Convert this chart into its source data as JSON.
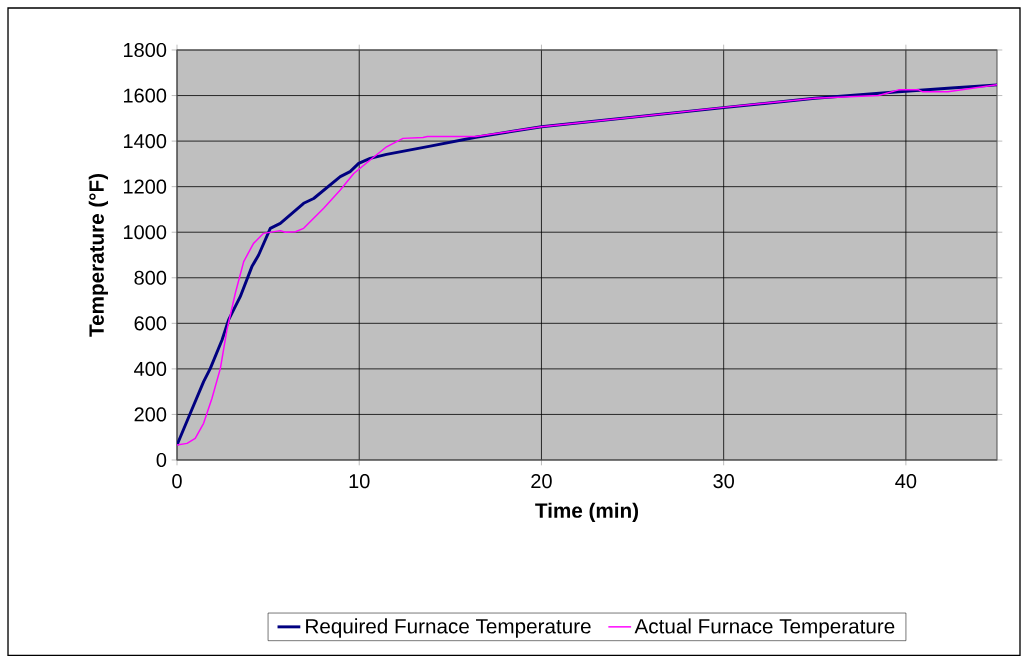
{
  "chart_data": {
    "type": "line",
    "xlabel": "Time (min)",
    "ylabel": "Temperature (°F)",
    "xlim": [
      0,
      45
    ],
    "xticks": [
      0,
      10,
      20,
      30,
      40
    ],
    "ylim": [
      0,
      1800
    ],
    "yticks": [
      0,
      200,
      400,
      600,
      800,
      1000,
      1200,
      1400,
      1600,
      1800
    ],
    "grid": true,
    "legend": "bottom",
    "marker": "none",
    "line_style": "solid",
    "series": [
      {
        "name": "Required Furnace Temperature",
        "color": "#000080",
        "x": [
          0,
          0.73,
          1.46,
          1.83,
          2.47,
          2.83,
          3.47,
          4.11,
          4.48,
          5.12,
          5.67,
          6.95,
          7.5,
          8.96,
          9.5,
          9.97,
          10.6,
          11.5,
          13.9,
          16.4,
          20,
          25,
          30,
          35,
          38.2,
          39.6,
          42.5,
          45
        ],
        "values": [
          66,
          205,
          344,
          402,
          527,
          615,
          717,
          849,
          900,
          1017,
          1039,
          1127,
          1148,
          1244,
          1266,
          1302,
          1324,
          1342,
          1378,
          1417,
          1463,
          1505,
          1547,
          1588,
          1608,
          1617,
          1633,
          1647
        ]
      },
      {
        "name": "Actual Furnace Temperature",
        "color": "#ff00ff",
        "x": [
          0,
          0.55,
          1.0,
          1.46,
          1.92,
          2.38,
          2.74,
          3.2,
          3.66,
          4.2,
          4.75,
          5.67,
          5.94,
          6.5,
          6.95,
          8.05,
          8.96,
          9.7,
          10.6,
          11.5,
          12.4,
          13.5,
          13.74,
          16.4,
          20,
          25,
          30,
          35,
          38.5,
          39.6,
          40.7,
          40.9,
          42.3,
          45
        ],
        "values": [
          66,
          73,
          95,
          161,
          271,
          402,
          571,
          732,
          871,
          951,
          995,
          1007,
          1000,
          1002,
          1017,
          1105,
          1185,
          1258,
          1317,
          1375,
          1412,
          1416,
          1420,
          1420,
          1463,
          1505,
          1548,
          1588,
          1600,
          1625,
          1625,
          1617,
          1617,
          1647
        ]
      }
    ]
  }
}
